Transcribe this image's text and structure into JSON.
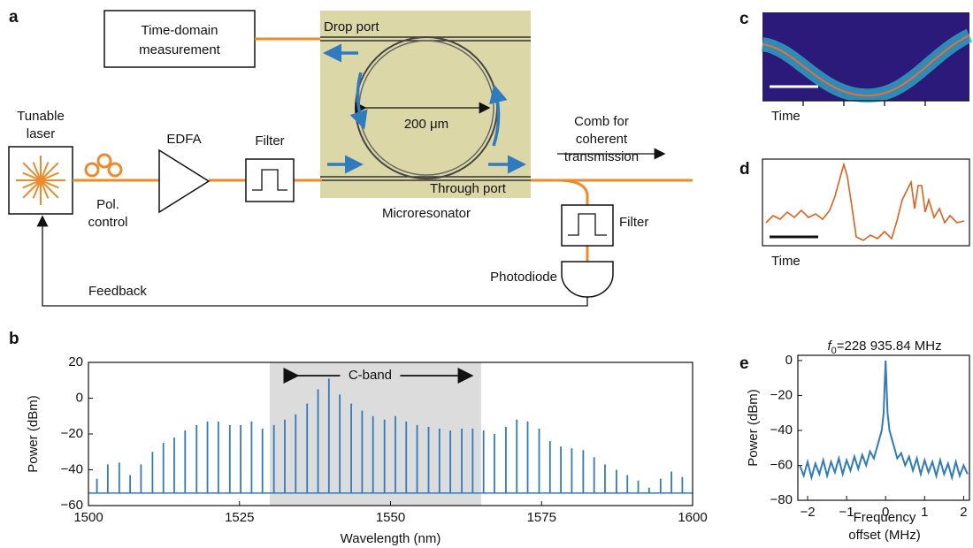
{
  "panel_labels": [
    "a",
    "b",
    "c",
    "d",
    "e"
  ],
  "diagram": {
    "time_domain": [
      "Time-domain",
      "measurement"
    ],
    "drop_port": "Drop port",
    "ring_size": "200 μm",
    "comb_out": [
      "Comb for",
      "coherent",
      "transmission"
    ],
    "laser": [
      "Tunable",
      "laser"
    ],
    "edfa": "EDFA",
    "filter1": "Filter",
    "pol": [
      "Pol.",
      "control"
    ],
    "microresonator": "Microresonator",
    "through_port": "Through port",
    "filter2": "Filter",
    "photodiode": "Photodiode",
    "feedback": "Feedback"
  },
  "insets": {
    "c_xlabel": "Time",
    "d_xlabel": "Time"
  },
  "chart_data": [
    {
      "type": "stem",
      "xlabel": "Wavelength (nm)",
      "ylabel": "Power (dBm)",
      "color": "#2f7bbf",
      "x": [
        1501.4,
        1503.2,
        1505.1,
        1506.9,
        1508.7,
        1510.6,
        1512.4,
        1514.2,
        1516.0,
        1517.9,
        1519.7,
        1521.5,
        1523.4,
        1525.2,
        1527.0,
        1528.8,
        1530.7,
        1532.5,
        1534.3,
        1536.2,
        1538.0,
        1539.8,
        1541.6,
        1543.5,
        1545.3,
        1547.1,
        1549.0,
        1550.8,
        1552.6,
        1554.4,
        1556.3,
        1558.1,
        1559.9,
        1561.8,
        1563.6,
        1565.4,
        1567.2,
        1569.1,
        1570.9,
        1572.7,
        1574.6,
        1576.4,
        1578.2,
        1580.0,
        1581.9,
        1583.7,
        1585.5,
        1587.4,
        1589.2,
        1591.0,
        1592.8,
        1594.7,
        1596.5,
        1598.3
      ],
      "values": [
        -45,
        -37,
        -36,
        -43,
        -37,
        -30,
        -25,
        -22,
        -18,
        -15,
        -13,
        -13,
        -15,
        -15,
        -13,
        -17,
        -15,
        -12,
        -9,
        -3,
        5,
        11,
        2,
        -3,
        -7,
        -10,
        -12,
        -10,
        -13,
        -15,
        -16,
        -17,
        -18,
        -17,
        -17,
        -18,
        -20,
        -16,
        -12,
        -13,
        -17,
        -24,
        -27,
        -28,
        -29,
        -33,
        -37,
        -40,
        -43,
        -46,
        -50,
        -45,
        -41,
        -44
      ],
      "noise_floor": -53,
      "xlim": [
        1500,
        1600
      ],
      "ylim": [
        -60,
        20
      ],
      "xticks": [
        1500,
        1525,
        1550,
        1575,
        1600
      ],
      "yticks": [
        {
          "value": -60,
          "label": "−60"
        },
        {
          "value": -40,
          "label": "−40"
        },
        {
          "value": -20,
          "label": "−20"
        },
        0,
        20
      ],
      "band": {
        "label": "C-band",
        "range": [
          1530,
          1565
        ]
      }
    },
    {
      "type": "line",
      "title": {
        "symbol": "f",
        "subscript": "0",
        "text": "=228 935.84 MHz"
      },
      "xlabel": [
        "Frequency",
        "offset (MHz)"
      ],
      "ylabel": "Power (dBm)",
      "color": "#2f7bbf",
      "x": [
        -2.2,
        -2.1,
        -2.0,
        -1.9,
        -1.8,
        -1.7,
        -1.6,
        -1.5,
        -1.4,
        -1.3,
        -1.2,
        -1.1,
        -1.0,
        -0.9,
        -0.8,
        -0.7,
        -0.6,
        -0.5,
        -0.4,
        -0.3,
        -0.2,
        -0.1,
        -0.05,
        0,
        0.05,
        0.1,
        0.2,
        0.3,
        0.4,
        0.5,
        0.6,
        0.7,
        0.8,
        0.9,
        1.0,
        1.1,
        1.2,
        1.3,
        1.4,
        1.5,
        1.6,
        1.7,
        1.8,
        1.9,
        2.0,
        2.1
      ],
      "values": [
        -60,
        -66,
        -58,
        -67,
        -59,
        -65,
        -57,
        -66,
        -58,
        -64,
        -56,
        -65,
        -57,
        -63,
        -55,
        -62,
        -54,
        -60,
        -52,
        -56,
        -48,
        -40,
        -30,
        0,
        -30,
        -40,
        -48,
        -56,
        -53,
        -60,
        -55,
        -63,
        -56,
        -65,
        -57,
        -64,
        -58,
        -66,
        -57,
        -65,
        -59,
        -67,
        -58,
        -66,
        -60,
        -65
      ],
      "xlim": [
        -2.25,
        2.15
      ],
      "ylim": [
        -80,
        3
      ],
      "xticks": [
        {
          "value": -2,
          "label": "−2"
        },
        {
          "value": -1,
          "label": "−1"
        },
        0,
        1,
        2
      ],
      "yticks": [
        0,
        {
          "value": -20,
          "label": "−20"
        },
        {
          "value": -40,
          "label": "−40"
        },
        {
          "value": -60,
          "label": "−60"
        },
        {
          "value": -80,
          "label": "−80"
        }
      ]
    }
  ]
}
